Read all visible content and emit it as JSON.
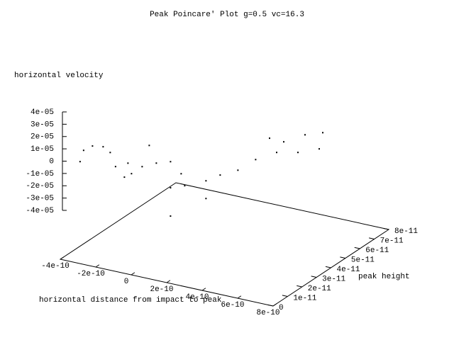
{
  "chart_data": {
    "type": "scatter3d",
    "title": "Peak Poincare' Plot g=0.5 vc=16.3",
    "xlabel": "horizontal distance from impact to peak",
    "ylabel": "peak height",
    "zlabel": "horizontal velocity",
    "xlim": [
      -4e-10,
      8e-10
    ],
    "xticks": [
      -4e-10,
      -2e-10,
      0,
      2e-10,
      4e-10,
      6e-10,
      8e-10
    ],
    "ylim": [
      0,
      8e-11
    ],
    "yticks": [
      0,
      1e-11,
      2e-11,
      3e-11,
      4e-11,
      5e-11,
      6e-11,
      7e-11,
      8e-11
    ],
    "zlim": [
      -4e-05,
      4e-05
    ],
    "zticks": [
      {
        "value": -4e-05,
        "label": "-4e-05"
      },
      {
        "value": -3e-05,
        "label": "-3e-05"
      },
      {
        "value": -2e-05,
        "label": "-2e-05"
      },
      {
        "value": -1e-05,
        "label": "-1e-05"
      },
      0,
      {
        "value": 1e-05,
        "label": "1e-05"
      },
      {
        "value": 2e-05,
        "label": "2e-05"
      },
      {
        "value": 3e-05,
        "label": "3e-05"
      },
      {
        "value": 4e-05,
        "label": "4e-05"
      }
    ],
    "color": "#000000",
    "x": [
      -3.7e-10,
      -3.5e-10,
      -3e-10,
      -2.4e-10,
      -2e-10,
      -1.7e-10,
      -1.2e-10,
      -8e-11,
      -2e-11,
      6e-11,
      1.4e-10,
      2e-10,
      1.4e-10,
      2.2e-10,
      3.4e-10,
      4.2e-10,
      5.2e-10,
      6.2e-10,
      5.34e-10,
      6.54e-10,
      7.54e-10,
      7.34e-10,
      6.14e-10,
      4.94e-10,
      4.54e-10,
      1.4e-10,
      2e-11,
      3.4e-10,
      -1e-10
    ],
    "y": [
      1e-11,
      1e-11,
      1e-11,
      1e-11,
      1e-11,
      1e-11,
      1e-11,
      1e-11,
      1e-11,
      1e-11,
      1e-11,
      1e-11,
      1e-11,
      1e-11,
      1e-11,
      1e-11,
      1e-11,
      1e-11,
      4e-11,
      4e-11,
      4e-11,
      4e-11,
      4e-11,
      4e-11,
      4e-11,
      1e-11,
      1e-11,
      1e-11,
      1e-11
    ],
    "z": [
      -7.5e-06,
      2.3e-06,
      7.4e-06,
      8.7e-06,
      5.3e-06,
      -5.2e-06,
      -1.22e-05,
      -8.1e-06,
      -5e-07,
      4.9e-06,
      8.6e-06,
      7e-07,
      -1.26e-05,
      -8.4e-06,
      -6e-07,
      6.6e-06,
      1.37e-05,
      2.55e-05,
      1.39e-05,
      2.34e-05,
      2.83e-05,
      1.45e-05,
      7.8e-06,
      4e-06,
      1.43e-05,
      -3.56e-05,
      1.8e-05,
      -1.5e-05,
      -2e-07
    ]
  }
}
